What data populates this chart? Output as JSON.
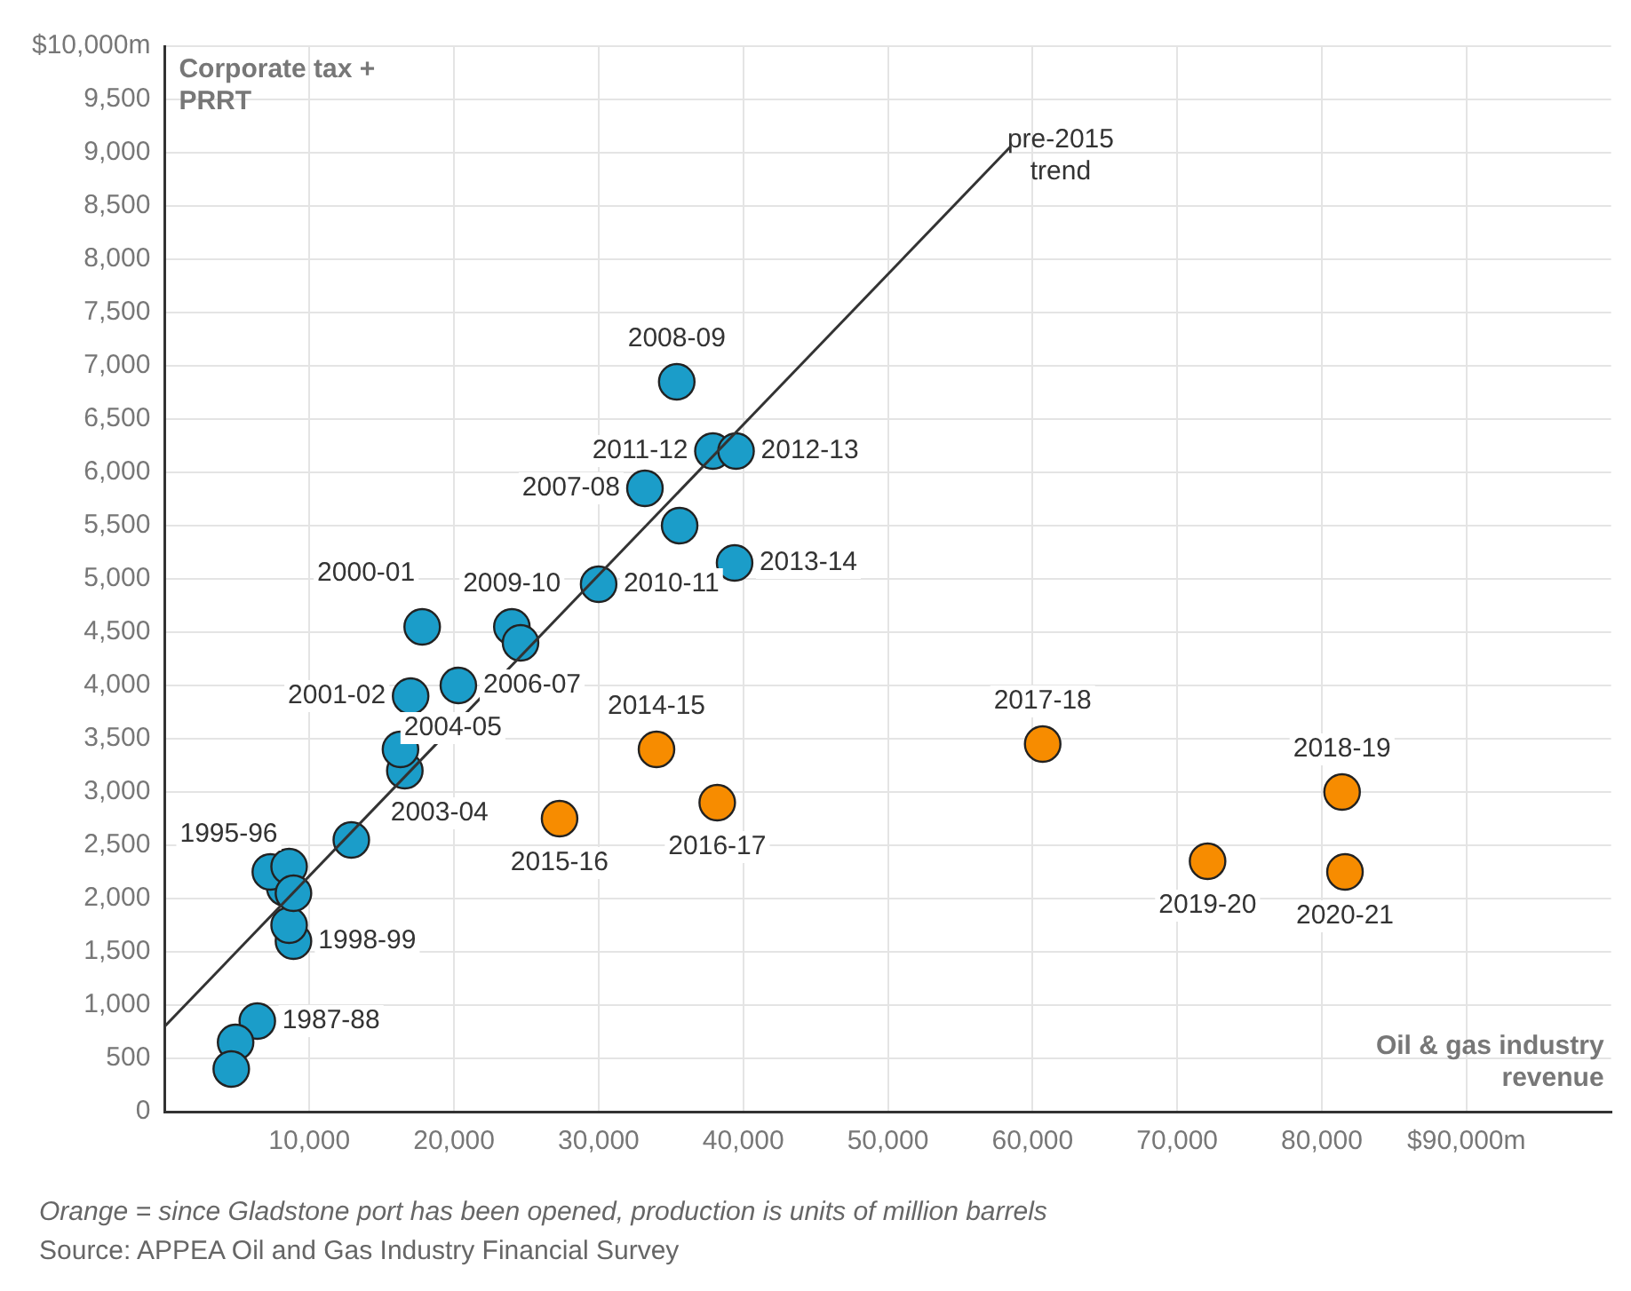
{
  "chart_data": {
    "type": "scatter",
    "xlabel": "Oil & gas industry revenue",
    "ylabel": "Corporate tax + PRRT",
    "xlim": [
      0,
      100000
    ],
    "ylim": [
      0,
      10000
    ],
    "xticks": [
      {
        "value": 10000,
        "label": "10,000"
      },
      {
        "value": 20000,
        "label": "20,000"
      },
      {
        "value": 30000,
        "label": "30,000"
      },
      {
        "value": 40000,
        "label": "40,000"
      },
      {
        "value": 50000,
        "label": "50,000"
      },
      {
        "value": 60000,
        "label": "60,000"
      },
      {
        "value": 70000,
        "label": "70,000"
      },
      {
        "value": 80000,
        "label": "80,000"
      },
      {
        "value": 90000,
        "label": "$90,000m"
      }
    ],
    "yticks": [
      0,
      500,
      {
        "value": 1000,
        "label": "1,000"
      },
      {
        "value": 1500,
        "label": "1,500"
      },
      {
        "value": 2000,
        "label": "2,000"
      },
      {
        "value": 2500,
        "label": "2,500"
      },
      {
        "value": 3000,
        "label": "3,000"
      },
      {
        "value": 3500,
        "label": "3,500"
      },
      {
        "value": 4000,
        "label": "4,000"
      },
      {
        "value": 4500,
        "label": "4,500"
      },
      {
        "value": 5000,
        "label": "5,000"
      },
      {
        "value": 5500,
        "label": "5,500"
      },
      {
        "value": 6000,
        "label": "6,000"
      },
      {
        "value": 6500,
        "label": "6,500"
      },
      {
        "value": 7000,
        "label": "7,000"
      },
      {
        "value": 7500,
        "label": "7,500"
      },
      {
        "value": 8000,
        "label": "8,000"
      },
      {
        "value": 8500,
        "label": "8,500"
      },
      {
        "value": 9000,
        "label": "9,000"
      },
      {
        "value": 9500,
        "label": "9,500"
      },
      {
        "value": 10000,
        "label": "$10,000m"
      }
    ],
    "grid": true,
    "marker": "circle",
    "series": [
      {
        "type": "line",
        "color": "#333333",
        "line_style": "solid",
        "marker": "none",
        "x": [
          0,
          58500
        ],
        "values": [
          800,
          9060
        ]
      },
      {
        "color": "#1b9dc9",
        "x": [
          6400,
          4900,
          4600,
          8900,
          8600,
          8300,
          7300,
          8600,
          8900,
          12900,
          16600,
          16300,
          17000,
          20300,
          17800,
          24000,
          24600,
          30000,
          39400,
          35600,
          33200,
          37900,
          39500,
          35400
        ],
        "values": [
          850,
          650,
          400,
          1600,
          1750,
          2100,
          2250,
          2300,
          2050,
          2550,
          3200,
          3400,
          3900,
          4000,
          4550,
          4550,
          4400,
          4950,
          5150,
          5500,
          5850,
          6200,
          6200,
          6850
        ],
        "value_labels": [
          "1987-88",
          null,
          null,
          "1998-99",
          null,
          "1995-96",
          null,
          null,
          null,
          null,
          "2003-04",
          "2004-05",
          "2001-02",
          "2006-07",
          "2000-01",
          "2009-10",
          null,
          "2010-11",
          "2013-14",
          null,
          "2007-08",
          "2011-12",
          "2012-13",
          "2008-09"
        ]
      },
      {
        "color": "#f78c00",
        "x": [
          34000,
          27300,
          38200,
          60700,
          81400,
          72100,
          81600
        ],
        "values": [
          3400,
          2750,
          2900,
          3450,
          3000,
          2350,
          2250
        ],
        "value_labels": [
          "2014-15",
          "2015-16",
          "2016-17",
          "2017-18",
          "2018-19",
          "2019-20",
          "2020-21"
        ]
      }
    ],
    "annotations": [
      {
        "text": "pre-2015 trend",
        "x": 58500,
        "y": 9060
      },
      "Orange = since Gladstone port has been opened, production is units of million barrels",
      "Source: APPEA Oil and Gas Industry Financial Survey"
    ]
  }
}
